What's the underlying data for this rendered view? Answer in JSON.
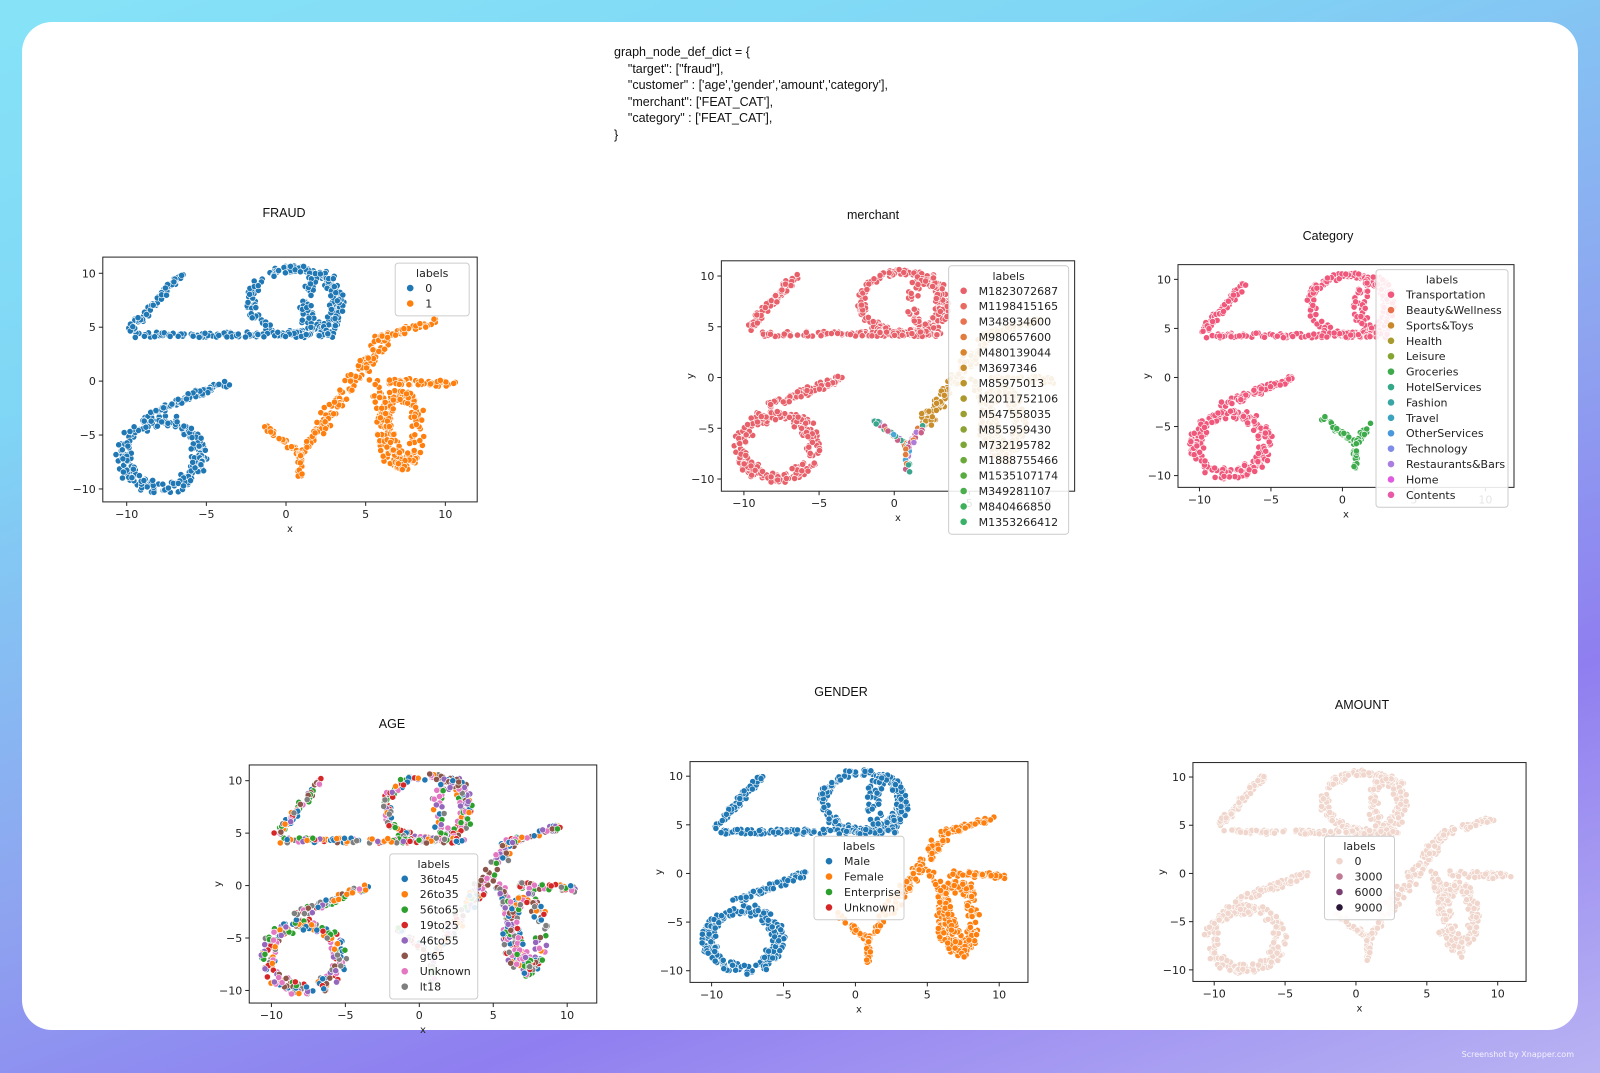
{
  "code_text": "graph_node_def_dict = {\n    \"target\": [\"fraud\"],\n    \"customer\" : ['age','gender','amount','category'],\n    \"merchant\": ['FEAT_CAT'],\n    \"category\" : ['FEAT_CAT'],\n}",
  "watermark": "Screenshot by Xnapper.com",
  "colors": {
    "cluster_a": "#1f77b4",
    "cluster_b": "#ff7f0e",
    "merchant_red": "#e8606a"
  },
  "chart_data": [
    {
      "id": "fraud",
      "type": "scatter",
      "title": "FRAUD",
      "xlabel": "x",
      "ylabel": "",
      "xlim": [
        -11.5,
        12
      ],
      "ylim": [
        -11.2,
        11.5
      ],
      "xticks": [
        -10,
        -5,
        0,
        5,
        10
      ],
      "yticks": [
        -10,
        -5,
        0,
        5,
        10
      ],
      "legend_title": "labels",
      "legend_loc": "upper right",
      "series": [
        {
          "name": "0",
          "color": "#1f77b4",
          "clusters": [
            "top_loop",
            "bottom_left"
          ]
        },
        {
          "name": "1",
          "color": "#ff7f0e",
          "clusters": [
            "right_branch",
            "y_shape"
          ]
        }
      ]
    },
    {
      "id": "merchant",
      "type": "scatter",
      "title": "merchant",
      "xlabel": "x",
      "ylabel": "y",
      "xlim": [
        -11.5,
        12
      ],
      "ylim": [
        -11.2,
        11.5
      ],
      "xticks": [
        -10,
        -5,
        0,
        5,
        10
      ],
      "yticks": [
        -10,
        -5,
        0,
        5,
        10
      ],
      "legend_title": "labels",
      "legend_loc": "right (overflowing)",
      "series": [
        {
          "name": "M1823072687",
          "color": "#e8606a",
          "clusters": [
            "top_loop",
            "bottom_left"
          ]
        },
        {
          "name": "M1198415165",
          "color": "#e96a5e",
          "clusters": []
        },
        {
          "name": "M348934600",
          "color": "#e77350",
          "clusters": []
        },
        {
          "name": "M980657600",
          "color": "#e27c3e",
          "clusters": []
        },
        {
          "name": "M480139044",
          "color": "#d88530",
          "clusters": []
        },
        {
          "name": "M3697346",
          "color": "#c98e2c",
          "clusters": [
            "right_branch"
          ]
        },
        {
          "name": "M85975013",
          "color": "#bb942c",
          "clusters": []
        },
        {
          "name": "M2011752106",
          "color": "#ab992e",
          "clusters": []
        },
        {
          "name": "M547558035",
          "color": "#9c9e30",
          "clusters": []
        },
        {
          "name": "M855959430",
          "color": "#8ca232",
          "clusters": []
        },
        {
          "name": "M732195782",
          "color": "#7ca636",
          "clusters": []
        },
        {
          "name": "M1888755466",
          "color": "#6aa93a",
          "clusters": []
        },
        {
          "name": "M1535107174",
          "color": "#58ac42",
          "clusters": []
        },
        {
          "name": "M349281107",
          "color": "#4aae4c",
          "clusters": []
        },
        {
          "name": "M840466850",
          "color": "#3fb05a",
          "clusters": []
        },
        {
          "name": "M1353266412",
          "color": "#3ab168",
          "clusters": []
        }
      ],
      "extra_clusters": [
        {
          "cluster": "y_shape",
          "palette": [
            "#b07ad8",
            "#4aa7d8",
            "#e07c3c",
            "#3aa58d",
            "#c95f86"
          ]
        }
      ]
    },
    {
      "id": "category",
      "type": "scatter",
      "title": "Category",
      "xlabel": "x",
      "ylabel": "y",
      "xlim": [
        -11.5,
        12
      ],
      "ylim": [
        -11.2,
        11.5
      ],
      "xticks": [
        -10,
        -5,
        0,
        5,
        10
      ],
      "yticks": [
        -10,
        -5,
        0,
        5,
        10
      ],
      "legend_title": "labels",
      "legend_loc": "right",
      "series": [
        {
          "name": "Transportation",
          "color": "#f0577a",
          "clusters": [
            "top_loop",
            "bottom_left"
          ]
        },
        {
          "name": "Beauty&Wellness",
          "color": "#e8704a",
          "clusters": []
        },
        {
          "name": "Sports&Toys",
          "color": "#c9882c",
          "clusters": []
        },
        {
          "name": "Health",
          "color": "#a79a2e",
          "clusters": []
        },
        {
          "name": "Leisure",
          "color": "#85a532",
          "clusters": []
        },
        {
          "name": "Groceries",
          "color": "#3daa4c",
          "clusters": [
            "y_shape"
          ]
        },
        {
          "name": "HotelServices",
          "color": "#36a88a",
          "clusters": []
        },
        {
          "name": "Fashion",
          "color": "#37a6a4",
          "clusters": []
        },
        {
          "name": "Travel",
          "color": "#3ba3be",
          "clusters": []
        },
        {
          "name": "OtherServices",
          "color": "#4898db",
          "clusters": []
        },
        {
          "name": "Technology",
          "color": "#7f8ce8",
          "clusters": []
        },
        {
          "name": "Restaurants&Bars",
          "color": "#a97ee0",
          "clusters": []
        },
        {
          "name": "Home",
          "color": "#e05be0",
          "clusters": []
        },
        {
          "name": "Contents",
          "color": "#e85aa8",
          "clusters": []
        }
      ]
    },
    {
      "id": "age",
      "type": "scatter",
      "title": "AGE",
      "xlabel": "x",
      "ylabel": "y",
      "xlim": [
        -11.5,
        12
      ],
      "ylim": [
        -11.2,
        11.5
      ],
      "xticks": [
        -10,
        -5,
        0,
        5,
        10
      ],
      "yticks": [
        -10,
        -5,
        0,
        5,
        10
      ],
      "legend_title": "labels",
      "legend_loc": "lower center",
      "series": [
        {
          "name": "36to45",
          "color": "#1f77b4",
          "clusters": []
        },
        {
          "name": "26to35",
          "color": "#ff7f0e",
          "clusters": []
        },
        {
          "name": "56to65",
          "color": "#2ca02c",
          "clusters": []
        },
        {
          "name": "19to25",
          "color": "#d62728",
          "clusters": []
        },
        {
          "name": "46to55",
          "color": "#9467bd",
          "clusters": []
        },
        {
          "name": "gt65",
          "color": "#8c564b",
          "clusters": []
        },
        {
          "name": "Unknown",
          "color": "#e377c2",
          "clusters": []
        },
        {
          "name": "lt18",
          "color": "#7f7f7f",
          "clusters": []
        }
      ],
      "mixed_clusters": [
        "top_loop",
        "bottom_left",
        "right_branch",
        "y_shape"
      ]
    },
    {
      "id": "gender",
      "type": "scatter",
      "title": "GENDER",
      "xlabel": "x",
      "ylabel": "y",
      "xlim": [
        -11.5,
        12
      ],
      "ylim": [
        -11.2,
        11.5
      ],
      "xticks": [
        -10,
        -5,
        0,
        5,
        10
      ],
      "yticks": [
        -10,
        -5,
        0,
        5,
        10
      ],
      "legend_title": "labels",
      "legend_loc": "center",
      "series": [
        {
          "name": "Male",
          "color": "#1f77b4",
          "clusters": [
            "top_loop",
            "bottom_left"
          ]
        },
        {
          "name": "Female",
          "color": "#ff7f0e",
          "clusters": [
            "right_branch",
            "y_shape"
          ]
        },
        {
          "name": "Enterprise",
          "color": "#2ca02c",
          "clusters": []
        },
        {
          "name": "Unknown",
          "color": "#d62728",
          "clusters": []
        }
      ]
    },
    {
      "id": "amount",
      "type": "scatter",
      "title": "AMOUNT",
      "xlabel": "x",
      "ylabel": "y",
      "xlim": [
        -11.5,
        12
      ],
      "ylim": [
        -11.2,
        11.5
      ],
      "xticks": [
        -10,
        -5,
        0,
        5,
        10
      ],
      "yticks": [
        -10,
        -5,
        0,
        5,
        10
      ],
      "legend_title": "labels",
      "legend_loc": "center",
      "series": [
        {
          "name": "0",
          "color": "#f0d6cc",
          "clusters": [
            "top_loop",
            "bottom_left",
            "right_branch",
            "y_shape"
          ]
        },
        {
          "name": "3000",
          "color": "#c07a93",
          "clusters": []
        },
        {
          "name": "6000",
          "color": "#7a3d72",
          "clusters": []
        },
        {
          "name": "9000",
          "color": "#2a1636",
          "clusters": []
        }
      ]
    }
  ]
}
